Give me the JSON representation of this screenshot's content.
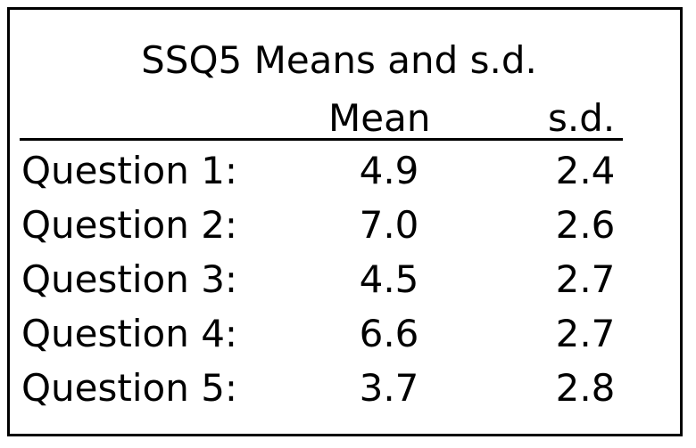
{
  "table": {
    "title": "SSQ5 Means and s.d.",
    "columns": {
      "mean": "Mean",
      "sd": "s.d."
    },
    "rows": [
      {
        "label": "Question 1:",
        "mean": "4.9",
        "sd": "2.4"
      },
      {
        "label": "Question 2:",
        "mean": "7.0",
        "sd": "2.6"
      },
      {
        "label": "Question 3:",
        "mean": "4.5",
        "sd": "2.7"
      },
      {
        "label": "Question 4:",
        "mean": "6.6",
        "sd": "2.7"
      },
      {
        "label": "Question 5:",
        "mean": "3.7",
        "sd": "2.8"
      }
    ]
  }
}
